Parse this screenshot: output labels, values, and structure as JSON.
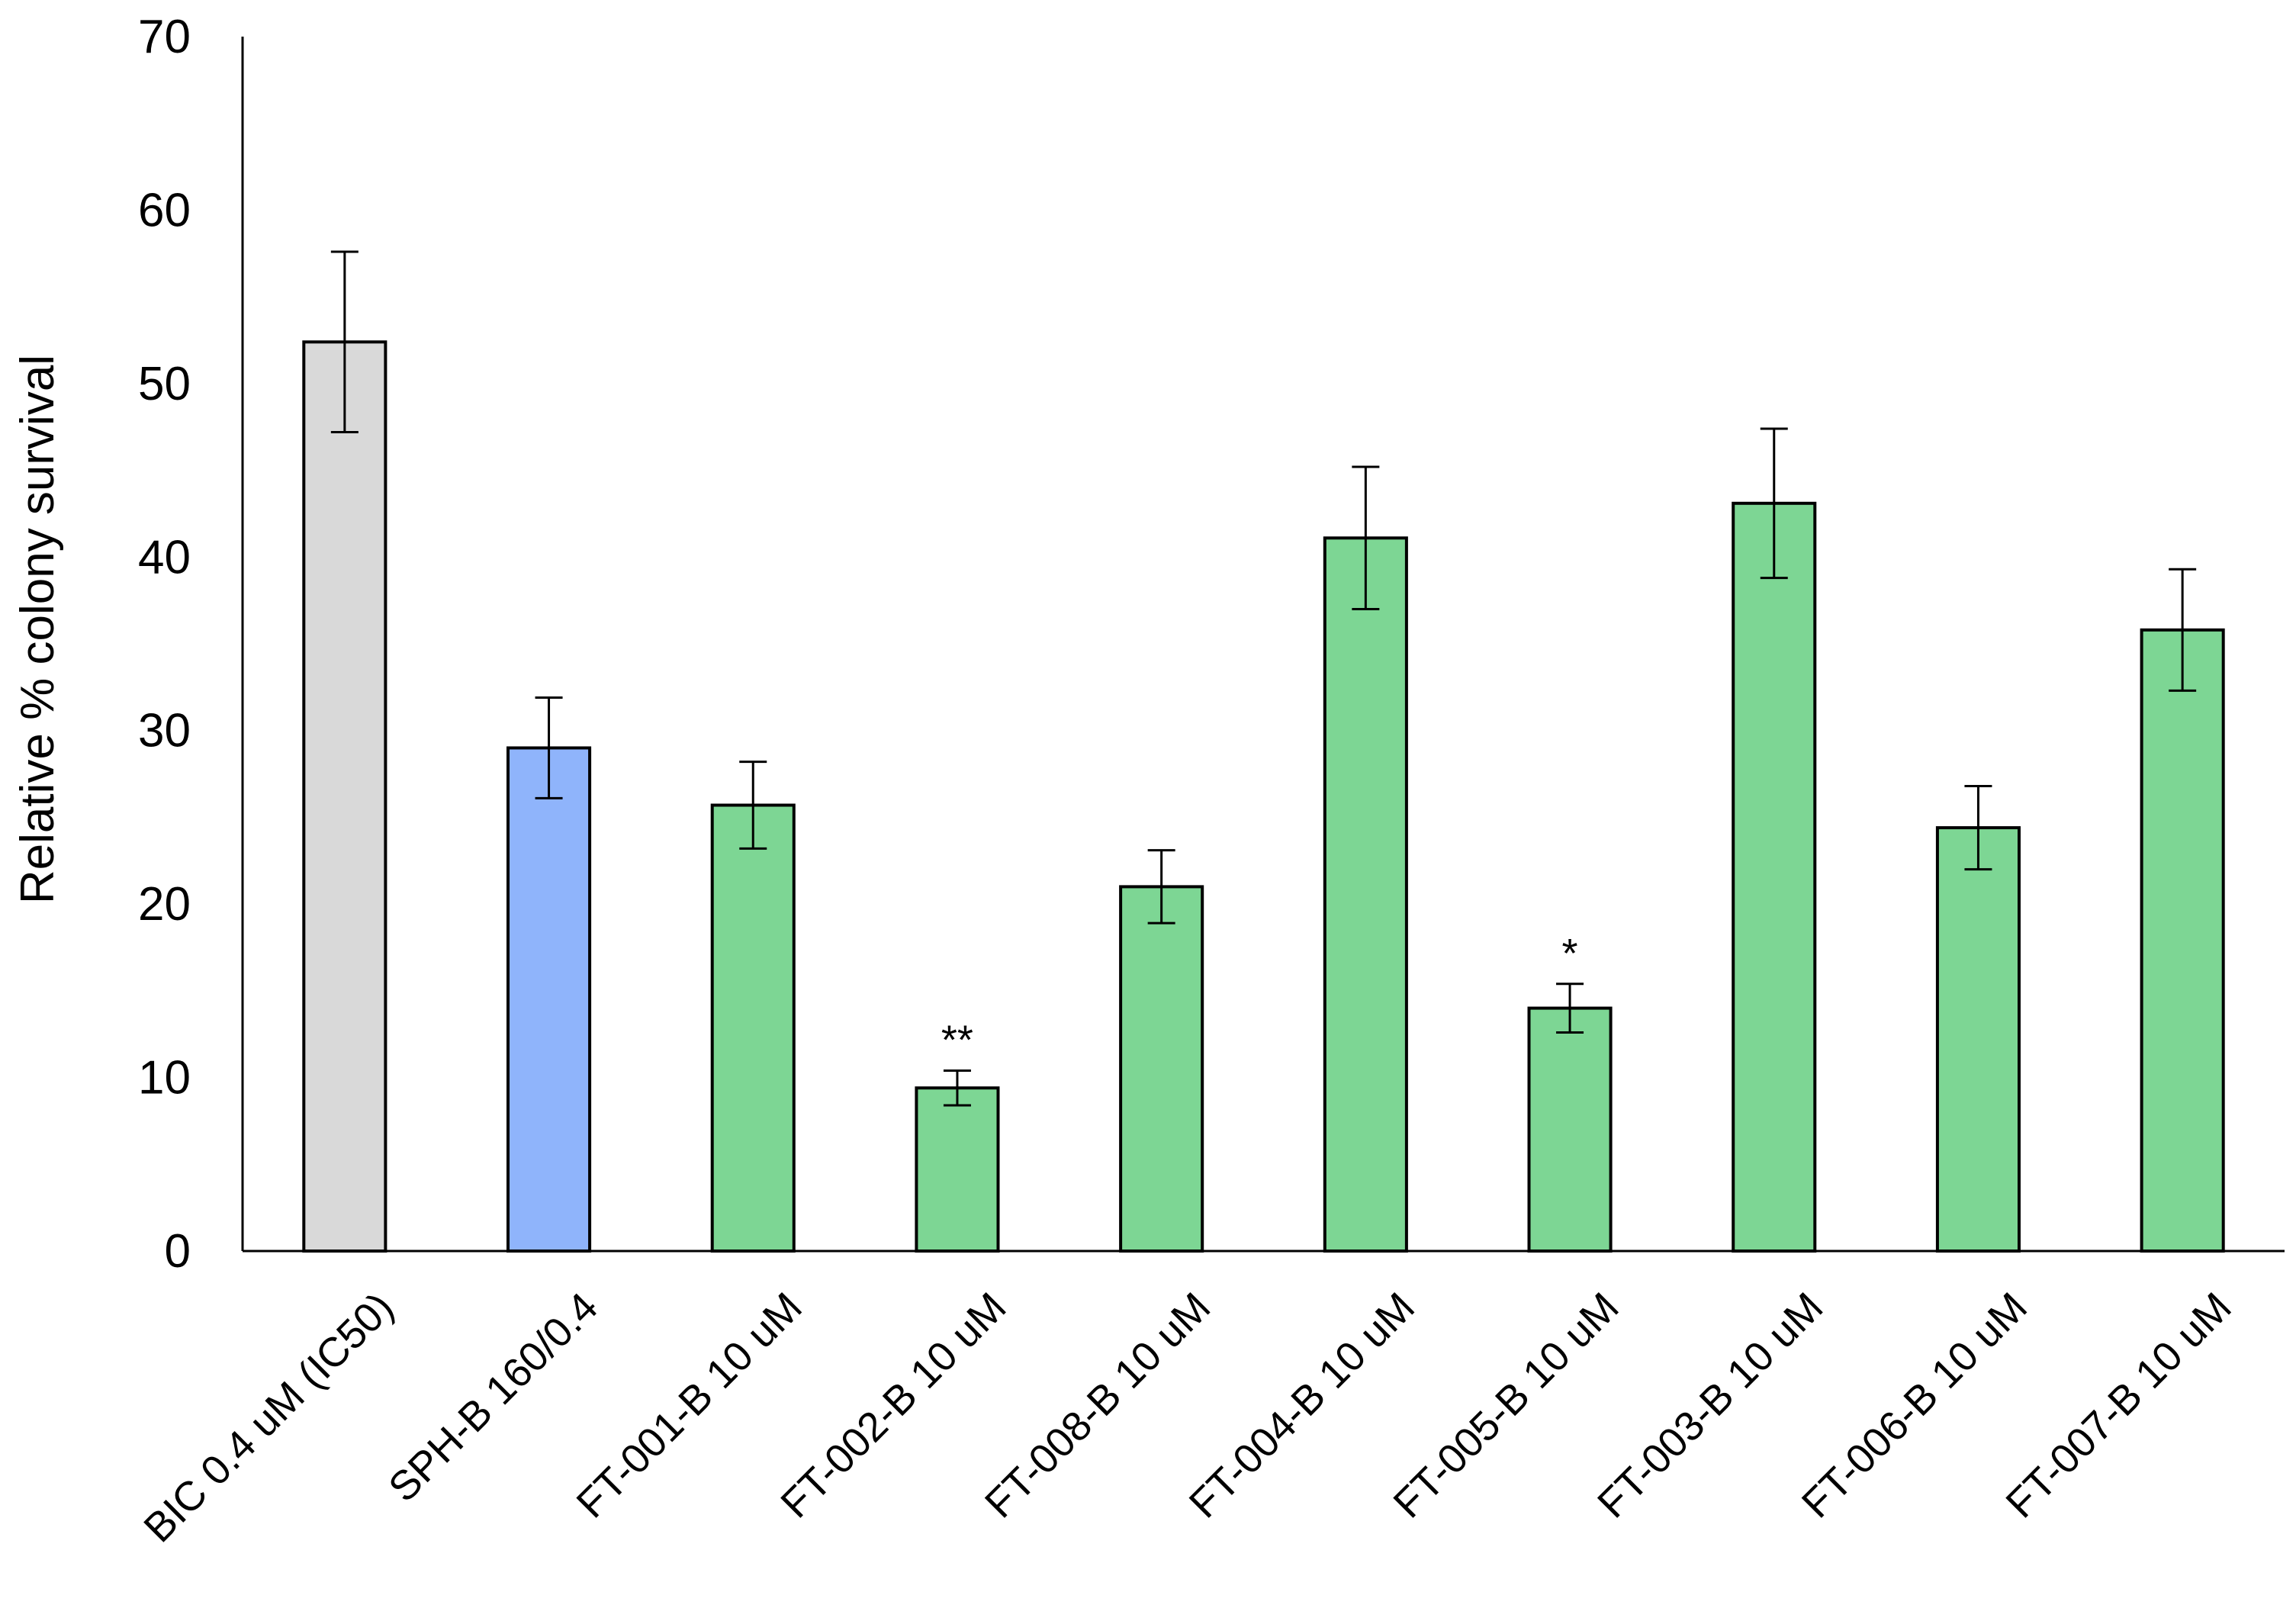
{
  "chart_data": {
    "type": "bar",
    "title": "",
    "xlabel": "",
    "ylabel": "Relative % colony survival",
    "ylim": [
      0,
      70
    ],
    "yticks": [
      0,
      10,
      20,
      30,
      40,
      50,
      60,
      70
    ],
    "grid": false,
    "legend": "none",
    "categories": [
      "BIC 0.4 uM (IC50)",
      "SPH-B 160/0.4",
      "FT-001-B 10 uM",
      "FT-002-B 10 uM",
      "FT-008-B 10 uM",
      "FT-004-B 10 uM",
      "FT-005-B 10 uM",
      "FT-003-B 10 uM",
      "FT-006-B 10 uM",
      "FT-007-B 10 uM"
    ],
    "values": [
      52.4,
      29.0,
      25.7,
      9.4,
      21.0,
      41.1,
      14.0,
      43.1,
      24.4,
      35.8
    ],
    "errors": [
      5.2,
      2.9,
      2.5,
      1.0,
      2.1,
      4.1,
      1.4,
      4.3,
      2.4,
      3.5
    ],
    "significance": [
      "",
      "",
      "",
      "**",
      "",
      "",
      "*",
      "",
      "",
      ""
    ],
    "colors": [
      "#d9d9d9",
      "#8fb4fb",
      "#7dd694",
      "#7dd694",
      "#7dd694",
      "#7dd694",
      "#7dd694",
      "#7dd694",
      "#7dd694",
      "#7dd694"
    ]
  }
}
